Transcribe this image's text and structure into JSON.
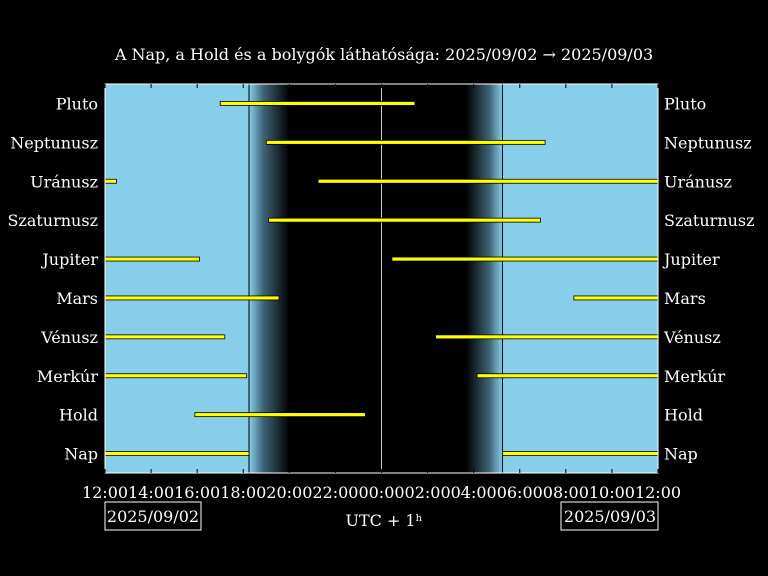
{
  "chart_data": {
    "type": "timeline",
    "title": "A Nap, a Hold és a bolygók láthatósága: 2025/09/02 → 2025/09/03",
    "xlabel": "UTC + 1ʰ",
    "x_range_hours": [
      0,
      24
    ],
    "x_ticks": [
      "12:00",
      "14:00",
      "16:00",
      "18:00",
      "20:00",
      "22:00",
      "00:00",
      "02:00",
      "04:00",
      "06:00",
      "08:00",
      "10:00",
      "12:00"
    ],
    "start_date": "2025/09/02",
    "end_date": "2025/09/03",
    "sunset": "18:15",
    "dusk_end": "20:00",
    "dawn_start": "03:40",
    "sunrise": "05:15",
    "colors": {
      "day": "#87ceeb",
      "night": "#000000",
      "bar": "#ffff00",
      "frame": "#ffffff"
    },
    "rows": [
      {
        "label": "Pluto",
        "spans": [
          [
            5.0,
            13.45
          ]
        ]
      },
      {
        "label": "Neptunusz",
        "spans": [
          [
            7.0,
            19.1
          ]
        ]
      },
      {
        "label": "Uránusz",
        "spans": [
          [
            0.0,
            0.5
          ],
          [
            9.25,
            24.0
          ]
        ]
      },
      {
        "label": "Szaturnusz",
        "spans": [
          [
            7.1,
            18.9
          ]
        ]
      },
      {
        "label": "Jupiter",
        "spans": [
          [
            0.0,
            4.1
          ],
          [
            12.45,
            24.0
          ]
        ]
      },
      {
        "label": "Mars",
        "spans": [
          [
            0.0,
            7.55
          ],
          [
            20.35,
            24.0
          ]
        ]
      },
      {
        "label": "Vénusz",
        "spans": [
          [
            0.0,
            5.2
          ],
          [
            14.35,
            24.0
          ]
        ]
      },
      {
        "label": "Merkúr",
        "spans": [
          [
            0.0,
            6.15
          ],
          [
            16.15,
            24.0
          ]
        ]
      },
      {
        "label": "Hold",
        "spans": [
          [
            3.9,
            11.3
          ]
        ]
      },
      {
        "label": "Nap",
        "spans": [
          [
            0.0,
            6.25
          ],
          [
            17.25,
            24.0
          ]
        ]
      }
    ]
  }
}
